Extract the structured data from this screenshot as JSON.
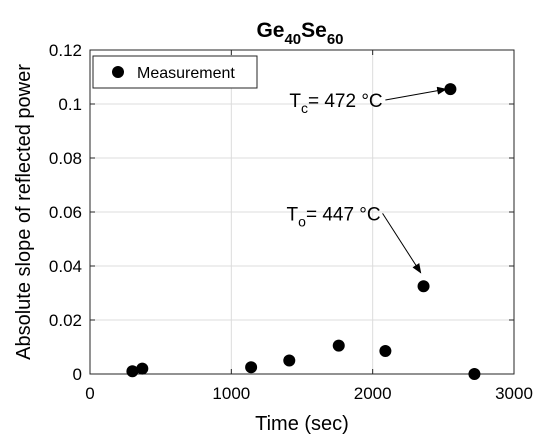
{
  "chart_data": {
    "type": "scatter",
    "title": {
      "base1": "Ge",
      "sub1": "40",
      "base2": "Se",
      "sub2": "60"
    },
    "xlabel": "Time (sec)",
    "ylabel": "Absolute slope of reflected power",
    "xlim": [
      0,
      3000
    ],
    "ylim": [
      0,
      0.12
    ],
    "xticks": [
      0,
      1000,
      2000,
      3000
    ],
    "xtick_labels": [
      "0",
      "1000",
      "2000",
      "3000"
    ],
    "yticks": [
      0,
      0.02,
      0.04,
      0.06,
      0.08,
      0.1,
      0.12
    ],
    "ytick_labels": [
      "0",
      "0.02",
      "0.04",
      "0.06",
      "0.08",
      "0.1",
      "0.12"
    ],
    "grid": true,
    "legend": {
      "position": "top-left",
      "entries": [
        "Measurement"
      ]
    },
    "series": [
      {
        "name": "Measurement",
        "color": "#000000",
        "x": [
          300,
          370,
          1140,
          1410,
          1760,
          2090,
          2360,
          2550,
          2720
        ],
        "y": [
          0.001,
          0.002,
          0.0025,
          0.005,
          0.0105,
          0.0085,
          0.0325,
          0.1055,
          0.0
        ]
      }
    ],
    "annotations": [
      {
        "prefix": "T",
        "sub": "c",
        "text": "= 472 °C",
        "target": [
          2520,
          0.1055
        ],
        "tail": [
          2090,
          0.1015
        ]
      },
      {
        "prefix": "T",
        "sub": "o",
        "text": "= 447 °C",
        "target": [
          2340,
          0.0375
        ],
        "tail": [
          2070,
          0.0595
        ]
      }
    ]
  }
}
